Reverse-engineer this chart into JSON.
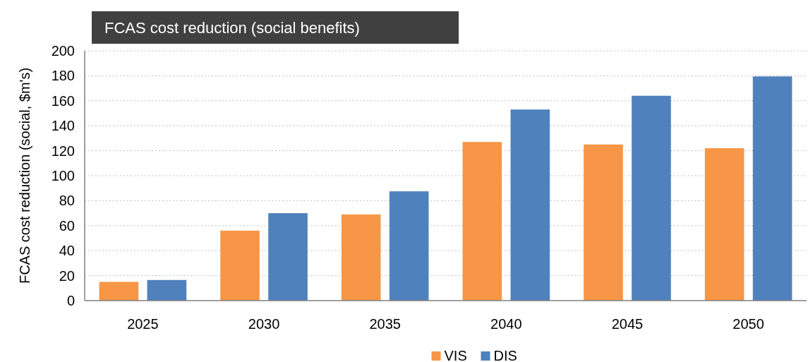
{
  "chart_data": {
    "type": "bar",
    "title": "FCAS cost reduction (social benefits)",
    "ylabel": "FCAS cost reduction (social, $m's)",
    "categories": [
      "2025",
      "2030",
      "2035",
      "2040",
      "2045",
      "2050"
    ],
    "series": [
      {
        "name": "VIS",
        "color": "#f79646",
        "values": [
          15,
          56,
          69,
          127,
          125,
          122
        ]
      },
      {
        "name": "DIS",
        "color": "#4f81bd",
        "values": [
          16.5,
          70,
          87.5,
          153,
          164,
          179.5
        ]
      }
    ],
    "ylim": [
      0,
      200
    ],
    "yticks": [
      0,
      20,
      40,
      60,
      80,
      100,
      120,
      140,
      160,
      180,
      200
    ],
    "grid": "y",
    "legend": "bottom"
  }
}
